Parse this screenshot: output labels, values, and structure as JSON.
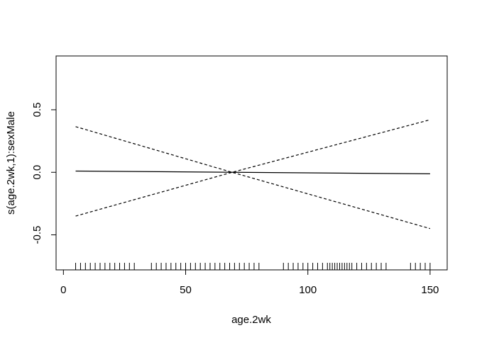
{
  "chart_data": {
    "type": "line",
    "title": "",
    "xlabel": "age.2wk",
    "ylabel": "s(age.2wk,1):sexMale",
    "xlim": [
      -3,
      157
    ],
    "ylim": [
      -0.78,
      0.93
    ],
    "x_ticks": [
      0,
      50,
      100,
      150
    ],
    "y_ticks": [
      -0.5,
      0.0,
      0.5
    ],
    "x_tick_labels": [
      "0",
      "50",
      "100",
      "150"
    ],
    "y_tick_labels": [
      "-0.5",
      "0.0",
      "0.5"
    ],
    "grid": false,
    "legend": "none",
    "series": [
      {
        "style": "solid",
        "x": [
          5,
          150
        ],
        "y": [
          0.01,
          -0.012
        ]
      },
      {
        "style": "dashed",
        "x": [
          5,
          69,
          150
        ],
        "y": [
          0.365,
          0.0,
          -0.45
        ]
      },
      {
        "style": "dashed",
        "x": [
          5,
          69,
          150
        ],
        "y": [
          -0.35,
          0.0,
          0.42
        ]
      }
    ],
    "rug": [
      5,
      7,
      9,
      11,
      13,
      15,
      17,
      19,
      21,
      23,
      25,
      27,
      29,
      36,
      38,
      40,
      42,
      44,
      46,
      48,
      50,
      52,
      54,
      56,
      58,
      60,
      62,
      64,
      66,
      68,
      70,
      72,
      74,
      76,
      78,
      80,
      90,
      92,
      94,
      96,
      98,
      100,
      102,
      104,
      106,
      108,
      109,
      110,
      111,
      112,
      113,
      114,
      115,
      116,
      117,
      118,
      120,
      122,
      124,
      126,
      128,
      130,
      132,
      142,
      144,
      146,
      148,
      150
    ]
  }
}
